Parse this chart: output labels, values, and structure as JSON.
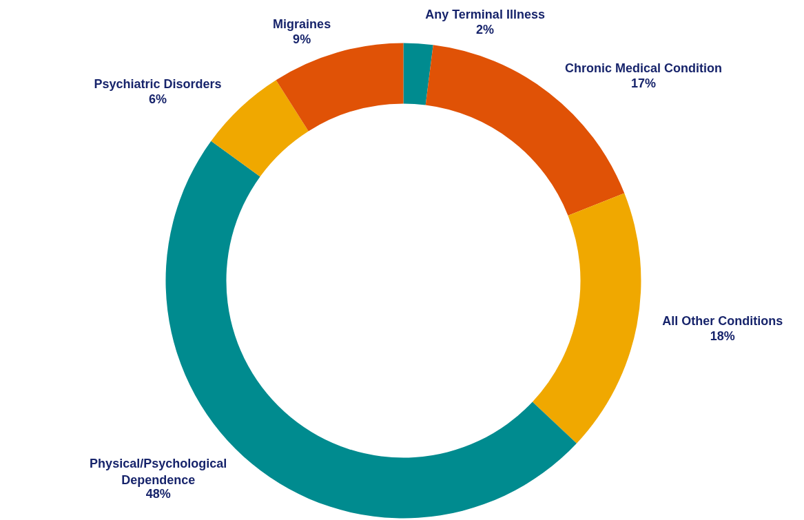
{
  "chart_data": {
    "type": "donut",
    "categories": [
      "Any Terminal Illness",
      "Chronic Medical Condition",
      "All Other Conditions",
      "Physical/Psychological Dependence",
      "Psychiatric Disorders",
      "Migraines"
    ],
    "values": [
      2,
      17,
      18,
      48,
      6,
      9
    ],
    "colors": [
      "#008b8f",
      "#e05206",
      "#f0a800",
      "#008b8f",
      "#f0a800",
      "#e05206"
    ],
    "value_labels": [
      "2%",
      "17%",
      "18%",
      "48%",
      "6%",
      "9%"
    ]
  }
}
